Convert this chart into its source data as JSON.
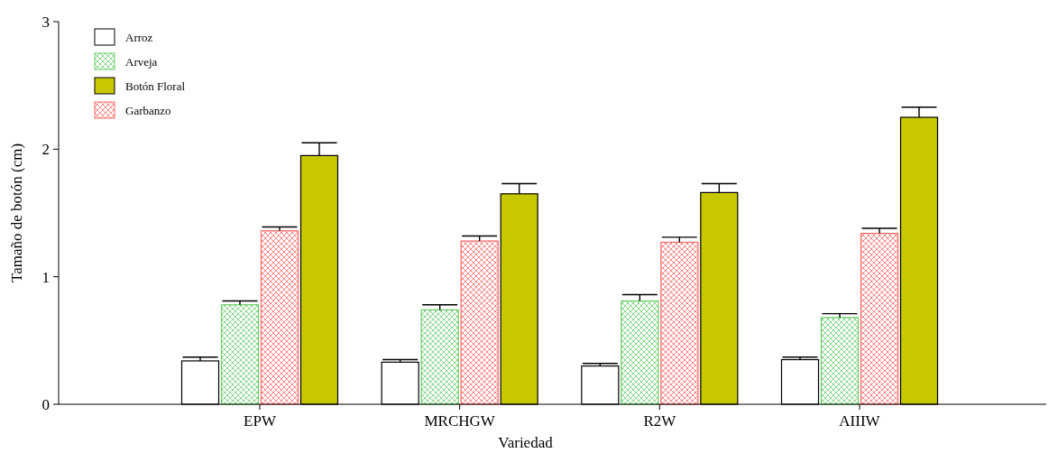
{
  "chart_data": {
    "type": "bar",
    "xlabel": "Variedad",
    "ylabel": "Tamaño de botón (cm)",
    "categories": [
      "EPW",
      "MRCHGW",
      "R2W",
      "AIIIW"
    ],
    "series": [
      {
        "name": "Arroz",
        "color": "#ffffff",
        "values": [
          0.34,
          0.33,
          0.3,
          0.35
        ],
        "errors": [
          [
            0.34,
            0.37
          ],
          [
            0.33,
            0.35
          ],
          [
            0.3,
            0.32
          ],
          [
            0.35,
            0.37
          ]
        ]
      },
      {
        "name": "Arveja",
        "color": "#66cc66",
        "values": [
          0.78,
          0.74,
          0.81,
          0.68
        ],
        "errors": [
          [
            0.78,
            0.81
          ],
          [
            0.74,
            0.78
          ],
          [
            0.81,
            0.86
          ],
          [
            0.68,
            0.71
          ]
        ]
      },
      {
        "name": "Garbanzo",
        "color": "#ff6666",
        "values": [
          1.36,
          1.28,
          1.27,
          1.34
        ],
        "errors": [
          [
            1.36,
            1.39
          ],
          [
            1.28,
            1.32
          ],
          [
            1.27,
            1.31
          ],
          [
            1.34,
            1.38
          ]
        ]
      },
      {
        "name": "Botón Floral",
        "color": "#c8c800",
        "values": [
          1.95,
          1.65,
          1.66,
          2.25
        ],
        "errors": [
          [
            1.95,
            2.05
          ],
          [
            1.65,
            1.73
          ],
          [
            1.66,
            1.73
          ],
          [
            2.25,
            2.33
          ]
        ]
      }
    ],
    "ylim": [
      0,
      3
    ],
    "yticks": [
      0,
      1,
      2,
      3
    ],
    "grid": false,
    "legend": "top left"
  }
}
